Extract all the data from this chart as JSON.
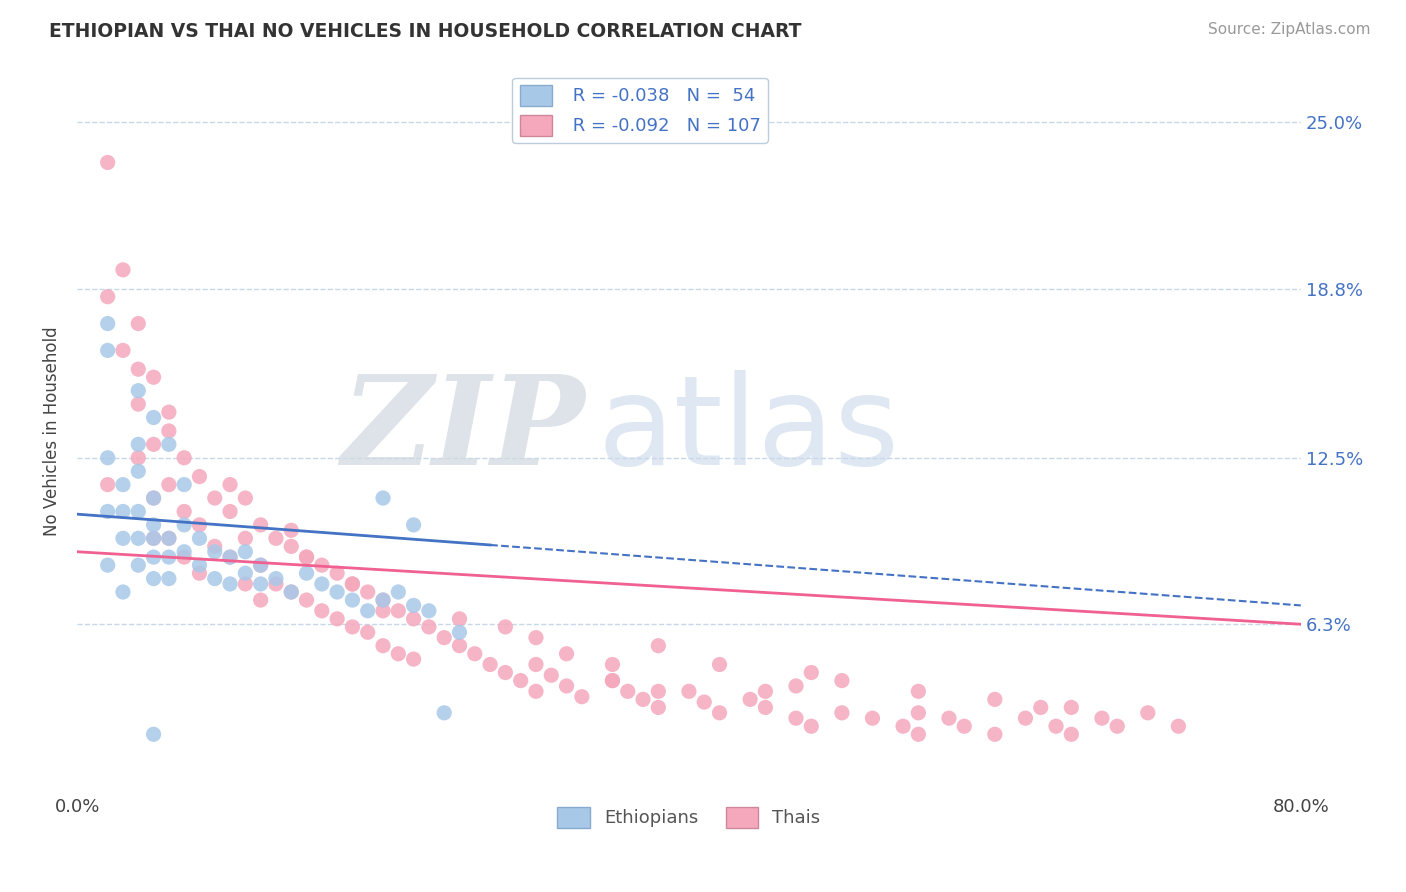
{
  "title": "ETHIOPIAN VS THAI NO VEHICLES IN HOUSEHOLD CORRELATION CHART",
  "source": "Source: ZipAtlas.com",
  "ylabel": "No Vehicles in Household",
  "xlim": [
    0.0,
    0.8
  ],
  "ylim": [
    0.0,
    0.27
  ],
  "yticks": [
    0.063,
    0.125,
    0.188,
    0.25
  ],
  "ytick_labels": [
    "6.3%",
    "12.5%",
    "18.8%",
    "25.0%"
  ],
  "xtick_labels_show": [
    "0.0%",
    "80.0%"
  ],
  "xtick_show_pos": [
    0.0,
    0.8
  ],
  "ethiopian_color": "#a8c8e8",
  "thai_color": "#f5a8bc",
  "ethiopian_line_color": "#4472c4",
  "thai_line_color": "#f06090",
  "R_ethiopian": -0.038,
  "N_ethiopian": 54,
  "R_thai": -0.092,
  "N_thai": 107,
  "background_color": "#ffffff",
  "grid_color": "#c8d8e8",
  "eth_line_solid_end": 0.27,
  "eth_line_start_y": 0.104,
  "eth_line_end_y": 0.07,
  "thai_line_start_y": 0.09,
  "thai_line_end_y": 0.063,
  "ethiopian_scatter_x": [
    0.02,
    0.02,
    0.02,
    0.02,
    0.03,
    0.03,
    0.03,
    0.04,
    0.04,
    0.04,
    0.04,
    0.04,
    0.05,
    0.05,
    0.05,
    0.05,
    0.05,
    0.06,
    0.06,
    0.06,
    0.07,
    0.07,
    0.08,
    0.08,
    0.09,
    0.09,
    0.1,
    0.1,
    0.11,
    0.11,
    0.12,
    0.12,
    0.13,
    0.14,
    0.15,
    0.16,
    0.17,
    0.18,
    0.19,
    0.2,
    0.21,
    0.22,
    0.23,
    0.25,
    0.02,
    0.03,
    0.04,
    0.05,
    0.06,
    0.2,
    0.22,
    0.24,
    0.05,
    0.07
  ],
  "ethiopian_scatter_y": [
    0.175,
    0.165,
    0.125,
    0.105,
    0.115,
    0.105,
    0.095,
    0.13,
    0.12,
    0.105,
    0.095,
    0.085,
    0.11,
    0.1,
    0.095,
    0.088,
    0.08,
    0.095,
    0.088,
    0.08,
    0.1,
    0.09,
    0.095,
    0.085,
    0.09,
    0.08,
    0.088,
    0.078,
    0.09,
    0.082,
    0.085,
    0.078,
    0.08,
    0.075,
    0.082,
    0.078,
    0.075,
    0.072,
    0.068,
    0.072,
    0.075,
    0.07,
    0.068,
    0.06,
    0.085,
    0.075,
    0.15,
    0.14,
    0.13,
    0.11,
    0.1,
    0.03,
    0.022,
    0.115
  ],
  "thai_scatter_x": [
    0.02,
    0.02,
    0.03,
    0.03,
    0.04,
    0.04,
    0.04,
    0.05,
    0.05,
    0.05,
    0.05,
    0.06,
    0.06,
    0.06,
    0.07,
    0.07,
    0.07,
    0.08,
    0.08,
    0.08,
    0.09,
    0.09,
    0.1,
    0.1,
    0.11,
    0.11,
    0.11,
    0.12,
    0.12,
    0.12,
    0.13,
    0.13,
    0.14,
    0.14,
    0.15,
    0.15,
    0.16,
    0.16,
    0.17,
    0.17,
    0.18,
    0.18,
    0.19,
    0.19,
    0.2,
    0.2,
    0.21,
    0.21,
    0.22,
    0.22,
    0.23,
    0.24,
    0.25,
    0.26,
    0.27,
    0.28,
    0.29,
    0.3,
    0.3,
    0.31,
    0.32,
    0.33,
    0.35,
    0.36,
    0.37,
    0.38,
    0.4,
    0.41,
    0.42,
    0.44,
    0.45,
    0.47,
    0.48,
    0.5,
    0.52,
    0.54,
    0.55,
    0.57,
    0.58,
    0.6,
    0.62,
    0.64,
    0.65,
    0.67,
    0.68,
    0.7,
    0.72,
    0.04,
    0.06,
    0.14,
    0.18,
    0.25,
    0.3,
    0.35,
    0.1,
    0.2,
    0.15,
    0.35,
    0.45,
    0.55,
    0.02,
    0.65,
    0.42,
    0.5,
    0.6,
    0.28,
    0.38,
    0.32,
    0.47,
    0.55,
    0.63,
    0.38,
    0.48
  ],
  "thai_scatter_y": [
    0.235,
    0.185,
    0.195,
    0.165,
    0.175,
    0.145,
    0.125,
    0.155,
    0.13,
    0.11,
    0.095,
    0.135,
    0.115,
    0.095,
    0.125,
    0.105,
    0.088,
    0.118,
    0.1,
    0.082,
    0.11,
    0.092,
    0.105,
    0.088,
    0.11,
    0.095,
    0.078,
    0.1,
    0.085,
    0.072,
    0.095,
    0.078,
    0.092,
    0.075,
    0.088,
    0.072,
    0.085,
    0.068,
    0.082,
    0.065,
    0.078,
    0.062,
    0.075,
    0.06,
    0.072,
    0.055,
    0.068,
    0.052,
    0.065,
    0.05,
    0.062,
    0.058,
    0.055,
    0.052,
    0.048,
    0.045,
    0.042,
    0.048,
    0.038,
    0.044,
    0.04,
    0.036,
    0.042,
    0.038,
    0.035,
    0.032,
    0.038,
    0.034,
    0.03,
    0.035,
    0.032,
    0.028,
    0.025,
    0.03,
    0.028,
    0.025,
    0.022,
    0.028,
    0.025,
    0.022,
    0.028,
    0.025,
    0.022,
    0.028,
    0.025,
    0.03,
    0.025,
    0.158,
    0.142,
    0.098,
    0.078,
    0.065,
    0.058,
    0.042,
    0.115,
    0.068,
    0.088,
    0.048,
    0.038,
    0.03,
    0.115,
    0.032,
    0.048,
    0.042,
    0.035,
    0.062,
    0.038,
    0.052,
    0.04,
    0.038,
    0.032,
    0.055,
    0.045
  ]
}
